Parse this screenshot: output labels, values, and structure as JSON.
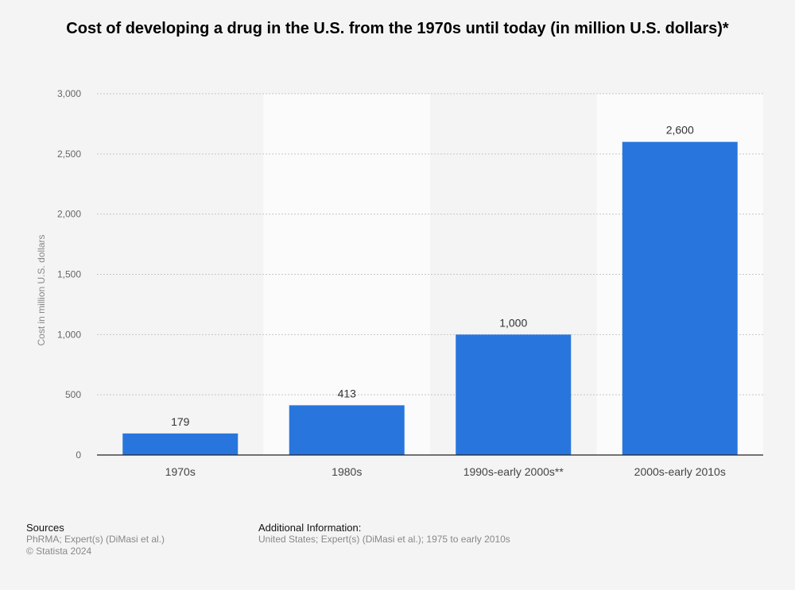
{
  "chart_data": {
    "type": "bar",
    "title": "Cost of developing a drug in the U.S. from the 1970s until today (in million U.S. dollars)*",
    "categories": [
      "1970s",
      "1980s",
      "1990s-early 2000s**",
      "2000s-early 2010s"
    ],
    "values": [
      179,
      413,
      1000,
      2600
    ],
    "value_labels": [
      "179",
      "413",
      "1,000",
      "2,600"
    ],
    "ylabel": "Cost in million U.S. dollars",
    "ylim": [
      0,
      3000
    ],
    "yticks": [
      0,
      500,
      1000,
      1500,
      2000,
      2500,
      3000
    ],
    "ytick_labels": [
      "0",
      "500",
      "1,000",
      "1,500",
      "2,000",
      "2,500",
      "3,000"
    ],
    "grid": true,
    "bar_color": "#2876dd"
  },
  "footer": {
    "sources_heading": "Sources",
    "sources_line1": "PhRMA; Expert(s) (DiMasi et al.)",
    "sources_line2": "© Statista 2024",
    "additional_heading": "Additional Information:",
    "additional_text": "United States; Expert(s) (DiMasi et al.); 1975 to early 2010s"
  }
}
